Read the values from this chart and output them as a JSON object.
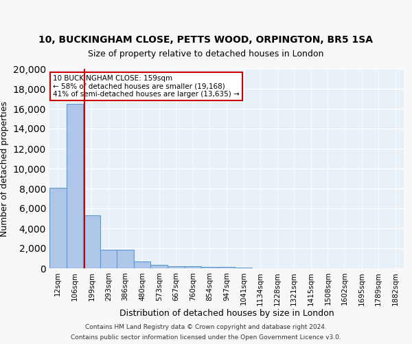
{
  "title1": "10, BUCKINGHAM CLOSE, PETTS WOOD, ORPINGTON, BR5 1SA",
  "title2": "Size of property relative to detached houses in London",
  "xlabel": "Distribution of detached houses by size in London",
  "ylabel": "Number of detached properties",
  "bar_values": [
    8100,
    16500,
    5300,
    1850,
    1850,
    700,
    320,
    220,
    200,
    170,
    150,
    50,
    30,
    20,
    15,
    10,
    5,
    5,
    3,
    2
  ],
  "bar_labels": [
    "12sqm",
    "106sqm",
    "199sqm",
    "293sqm",
    "386sqm",
    "480sqm",
    "573sqm",
    "667sqm",
    "760sqm",
    "854sqm",
    "947sqm",
    "1041sqm",
    "1134sqm",
    "1228sqm",
    "1321sqm",
    "1415sqm",
    "1508sqm",
    "1602sqm",
    "1695sqm",
    "1789sqm"
  ],
  "bar_color": "#aec6e8",
  "bar_edge_color": "#5b9bd5",
  "background_color": "#e8f0f8",
  "grid_color": "#ffffff",
  "red_line_x": 1.35,
  "annotation_text": "10 BUCKINGHAM CLOSE: 159sqm\n← 58% of detached houses are smaller (19,168)\n41% of semi-detached houses are larger (13,635) →",
  "annotation_box_color": "#ffffff",
  "annotation_box_edge_color": "#cc0000",
  "ylim": [
    0,
    20000
  ],
  "yticks": [
    0,
    2000,
    4000,
    6000,
    8000,
    10000,
    12000,
    14000,
    16000,
    18000,
    20000
  ],
  "footer1": "Contains HM Land Registry data © Crown copyright and database right 2024.",
  "footer2": "Contains public sector information licensed under the Open Government Licence v3.0."
}
